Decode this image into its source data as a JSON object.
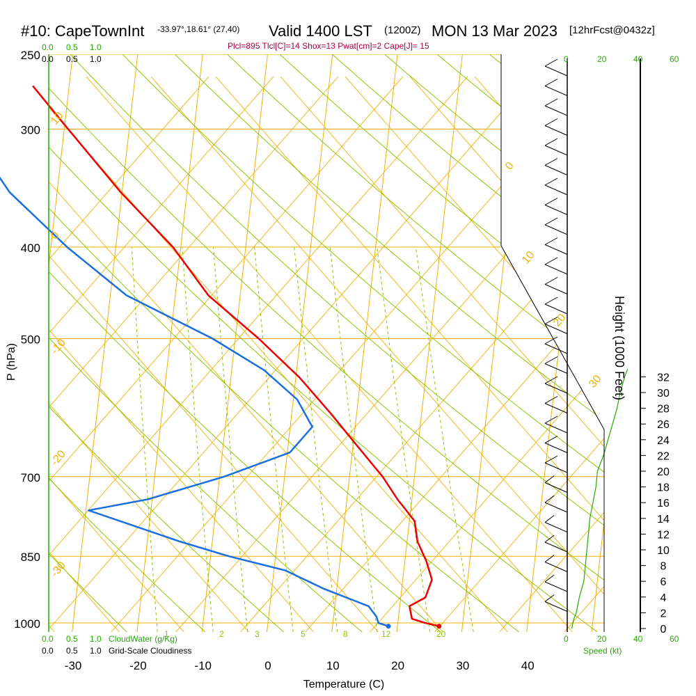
{
  "header": {
    "station": "#10: CapeTownInt",
    "coords": "-33.97°,18.61° (27,40)",
    "valid": "Valid 1400 LST",
    "zulu": "(1200Z)",
    "date": "MON 13 Mar 2023",
    "forecast": "[12hrFcst@0432z]",
    "indices": "Plcl=895 Tlcl[C]=14 Shox=13 Pwat[cm]=2 Cape[J]= 15"
  },
  "labels": {
    "pressure_axis": "P (hPa)",
    "temperature_axis": "Temperature (C)",
    "height_axis": "Height (1000 Feet)",
    "speed_axis": "Speed (kt)",
    "cloudwater": "CloudWater (g/Kg)",
    "cloudiness": "Grid-Scale Cloudiness"
  },
  "scales": {
    "cloud_top": [
      "0.0",
      "0.5",
      "1.0"
    ],
    "cloud_bottom": [
      "0.0",
      "0.5",
      "1.0"
    ],
    "speed": [
      "0",
      "20",
      "40",
      "60"
    ]
  },
  "colors": {
    "temperature": "#ee0000",
    "dewpoint": "#1a6fe0",
    "isotherm_isobar": "#f0b000",
    "dry_adiabat": "#8cc800",
    "mixing_ratio": "#8cc800",
    "green_text": "#22aa00",
    "index_text": "#aa0044",
    "wind_speed": "#22aa00"
  },
  "chart_data": {
    "type": "line",
    "title": "#10: CapeTownInt Valid 1400 LST (1200Z) MON 13 Mar 2023 [12hrFcst@0432z]",
    "xlabel": "Temperature (C)",
    "ylabel": "P (hPa)",
    "y2label": "Height (1000 Feet)",
    "xlim": [
      -30,
      40
    ],
    "pressure_ticks": [
      250,
      300,
      400,
      500,
      700,
      850,
      1000
    ],
    "temperature_ticks": [
      -30,
      -20,
      -10,
      0,
      10,
      20,
      30,
      40
    ],
    "height_ticks": [
      0,
      2,
      4,
      6,
      8,
      10,
      12,
      14,
      16,
      18,
      20,
      22,
      24,
      26,
      28,
      30,
      32
    ],
    "isotherm_labels": [
      "10",
      "0",
      "-10",
      "-20",
      "-30",
      "0",
      "10",
      "20",
      "30"
    ],
    "mixing_ratio_labels": [
      "1",
      "2",
      "3",
      "5",
      "8",
      "12",
      "20"
    ],
    "series": [
      {
        "name": "Temperature",
        "pressure": [
          1008,
          1000,
          990,
          960,
          940,
          900,
          860,
          820,
          780,
          740,
          700,
          650,
          600,
          550,
          500,
          450,
          400,
          350,
          300,
          270
        ],
        "value": [
          26.4,
          24.2,
          22.1,
          21.5,
          23.8,
          24.5,
          23.3,
          21.6,
          20.8,
          17.8,
          15.1,
          10.7,
          6.0,
          0.6,
          -6.4,
          -14.9,
          -21.2,
          -30.2,
          -39.4,
          -45.6
        ]
      },
      {
        "name": "Dewpoint",
        "pressure": [
          1008,
          1000,
          985,
          960,
          920,
          880,
          850,
          820,
          780,
          760,
          740,
          700,
          660,
          620,
          580,
          540,
          500,
          450,
          400,
          350,
          320,
          300,
          280,
          270
        ],
        "value": [
          18.6,
          17.0,
          16.6,
          15.2,
          8.0,
          1.8,
          -7.2,
          -15.0,
          -24.6,
          -29.6,
          -20.7,
          -9.3,
          0.4,
          3.4,
          0.6,
          -5.0,
          -13.5,
          -27.5,
          -37.5,
          -47.3,
          -51.8,
          -52.7,
          -53.9,
          -55.4
        ]
      },
      {
        "name": "Wind speed",
        "height_kft": [
          0,
          1,
          2,
          4,
          6,
          8,
          10,
          12,
          14,
          16,
          18,
          20,
          22,
          24,
          26,
          28,
          30,
          32,
          33
        ],
        "value": [
          3,
          4,
          6,
          8,
          11,
          12,
          13,
          14,
          15,
          17,
          19,
          20,
          24,
          27,
          30,
          33,
          35,
          38,
          40
        ]
      }
    ]
  }
}
